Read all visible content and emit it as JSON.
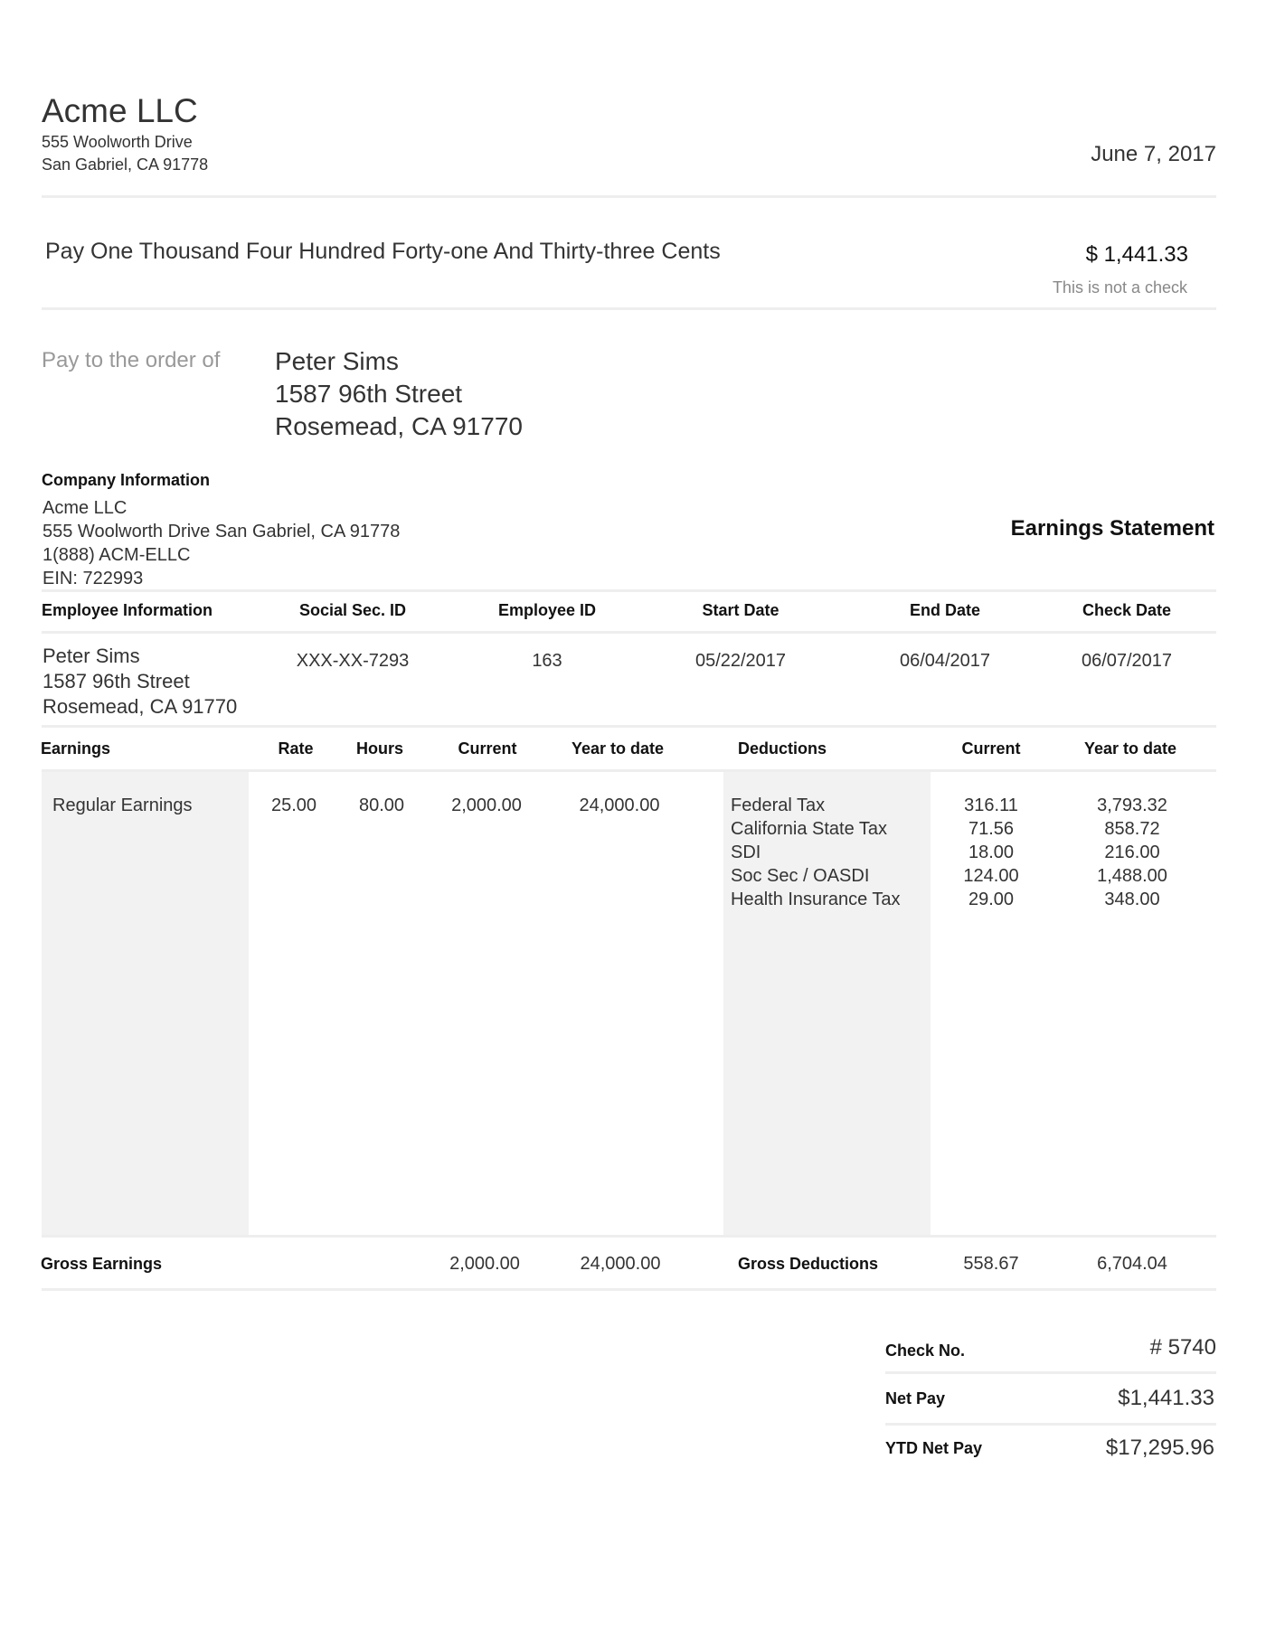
{
  "header": {
    "company_name": "Acme LLC",
    "address_line1": "555 Woolworth Drive",
    "address_line2": "San Gabriel, CA 91778",
    "date": "June 7, 2017"
  },
  "check": {
    "amount_words": "Pay One Thousand Four Hundred Forty-one And Thirty-three Cents",
    "amount": "$ 1,441.33",
    "disclaimer": "This is not a check",
    "pay_to_label": "Pay to the order of",
    "payee_name": "Peter Sims",
    "payee_address1": "1587 96th Street",
    "payee_address2": "Rosemead, CA 91770"
  },
  "company_info": {
    "heading": "Company Information",
    "name": "Acme LLC",
    "address": "555 Woolworth Drive San Gabriel, CA 91778",
    "phone": "1(888) ACM-ELLC",
    "ein": "EIN: 722993",
    "statement_title": "Earnings Statement"
  },
  "employee": {
    "headers": [
      "Employee Information",
      "Social Sec. ID",
      "Employee ID",
      "Start Date",
      "End Date",
      "Check Date"
    ],
    "name": "Peter Sims",
    "address1": "1587 96th Street",
    "address2": "Rosemead, CA 91770",
    "ssn": "XXX-XX-7293",
    "employee_id": "163",
    "start_date": "05/22/2017",
    "end_date": "06/04/2017",
    "check_date": "06/07/2017"
  },
  "earnings": {
    "headers": [
      "Earnings",
      "Rate",
      "Hours",
      "Current",
      "Year to date"
    ],
    "rows": [
      {
        "name": "Regular Earnings",
        "rate": "25.00",
        "hours": "80.00",
        "current": "2,000.00",
        "ytd": "24,000.00"
      }
    ],
    "gross_label": "Gross Earnings",
    "gross_current": "2,000.00",
    "gross_ytd": "24,000.00"
  },
  "deductions": {
    "headers": [
      "Deductions",
      "Current",
      "Year to date"
    ],
    "rows": [
      {
        "name": "Federal Tax",
        "current": "316.11",
        "ytd": "3,793.32"
      },
      {
        "name": "California State Tax",
        "current": "71.56",
        "ytd": "858.72"
      },
      {
        "name": "SDI",
        "current": "18.00",
        "ytd": "216.00"
      },
      {
        "name": "Soc Sec / OASDI",
        "current": "124.00",
        "ytd": "1,488.00"
      },
      {
        "name": "Health Insurance Tax",
        "current": "29.00",
        "ytd": "348.00"
      }
    ],
    "gross_label": "Gross Deductions",
    "gross_current": "558.67",
    "gross_ytd": "6,704.04"
  },
  "summary": {
    "check_no_label": "Check No.",
    "check_no": "# 5740",
    "net_pay_label": "Net Pay",
    "net_pay": "$1,441.33",
    "ytd_net_pay_label": "YTD Net Pay",
    "ytd_net_pay": "$17,295.96"
  }
}
